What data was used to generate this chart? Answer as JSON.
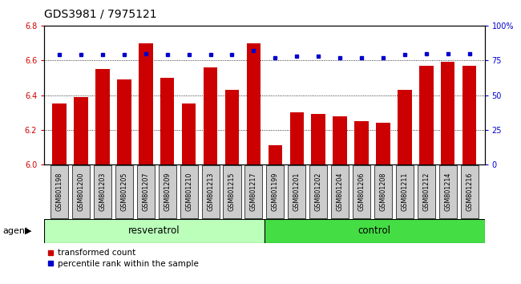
{
  "title": "GDS3981 / 7975121",
  "categories": [
    "GSM801198",
    "GSM801200",
    "GSM801203",
    "GSM801205",
    "GSM801207",
    "GSM801209",
    "GSM801210",
    "GSM801213",
    "GSM801215",
    "GSM801217",
    "GSM801199",
    "GSM801201",
    "GSM801202",
    "GSM801204",
    "GSM801206",
    "GSM801208",
    "GSM801211",
    "GSM801212",
    "GSM801214",
    "GSM801216"
  ],
  "bar_values": [
    6.35,
    6.39,
    6.55,
    6.49,
    6.7,
    6.5,
    6.35,
    6.56,
    6.43,
    6.7,
    6.11,
    6.3,
    6.29,
    6.28,
    6.25,
    6.24,
    6.43,
    6.57,
    6.59,
    6.57
  ],
  "percentile_values": [
    79,
    79,
    79,
    79,
    80,
    79,
    79,
    79,
    79,
    82,
    77,
    78,
    78,
    77,
    77,
    77,
    79,
    80,
    80,
    80
  ],
  "bar_color": "#CC0000",
  "percentile_color": "#0000CC",
  "bar_bottom": 6.0,
  "ylim_left": [
    6.0,
    6.8
  ],
  "ylim_right": [
    0,
    100
  ],
  "yticks_left": [
    6.0,
    6.2,
    6.4,
    6.6,
    6.8
  ],
  "yticks_right": [
    0,
    25,
    50,
    75,
    100
  ],
  "ytick_labels_right": [
    "0",
    "25",
    "50",
    "75",
    "100%"
  ],
  "grid_lines": [
    6.2,
    6.4,
    6.6
  ],
  "group_labels": [
    "resveratrol",
    "control"
  ],
  "group_color_resv": "#bbffbb",
  "group_color_ctrl": "#44dd44",
  "n_resv": 10,
  "n_ctrl": 10,
  "agent_label": "agent",
  "legend_items": [
    "transformed count",
    "percentile rank within the sample"
  ],
  "title_fontsize": 10,
  "tick_fontsize": 7,
  "label_fontsize": 8,
  "axis_color_left": "#CC0000",
  "axis_color_right": "#0000CC",
  "xtick_box_color": "#cccccc",
  "xtick_fontsize": 5.8
}
